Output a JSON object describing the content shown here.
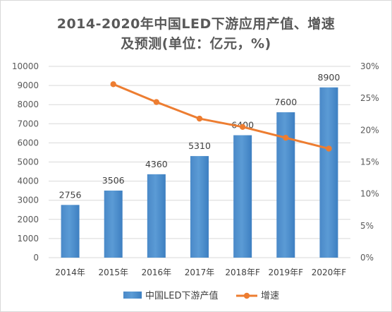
{
  "chart_data": {
    "type": "bar",
    "title_line1": "2014-2020年中国LED下游应用产值、增速",
    "title_line2": "及预测(单位：亿元，%)",
    "categories": [
      "2014年",
      "2015年",
      "2016年",
      "2017年",
      "2018年F",
      "2019年F",
      "2020年F"
    ],
    "series": [
      {
        "name": "中国LED下游产值",
        "type": "bar",
        "axis": "left",
        "color": "#5b9bd5",
        "values": [
          2756,
          3506,
          4360,
          5310,
          6400,
          7600,
          8900
        ]
      },
      {
        "name": "增速",
        "type": "line",
        "axis": "right",
        "color": "#ed7d31",
        "values": [
          null,
          27.2,
          24.4,
          21.8,
          20.5,
          18.8,
          17.1
        ]
      }
    ],
    "ylim_left": [
      0,
      10000
    ],
    "yticks_left": [
      "0",
      "1000",
      "2000",
      "3000",
      "4000",
      "5000",
      "6000",
      "7000",
      "8000",
      "9000",
      "10000"
    ],
    "ylim_right": [
      0,
      30
    ],
    "yticks_right": [
      "0%",
      "5%",
      "10%",
      "15%",
      "20%",
      "25%",
      "30%"
    ],
    "data_labels": [
      "2756",
      "3506",
      "4360",
      "5310",
      "6400",
      "7600",
      "8900"
    ],
    "grid": true,
    "legend_position": "bottom"
  }
}
